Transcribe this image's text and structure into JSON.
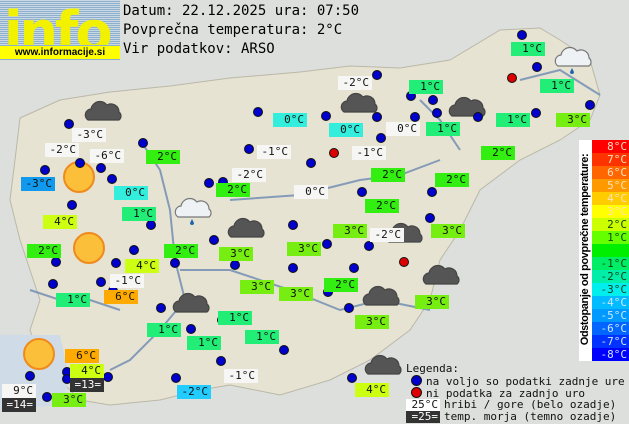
{
  "logo": {
    "word": "info",
    "url": "www.informacije.si"
  },
  "header": {
    "date_line": "Datum: 22.12.2025 ura: 07:50",
    "avg_line": "Povprečna temperatura: 2°C",
    "source_line": "Vir podatkov: ARSO"
  },
  "colors": {
    "white": "#f6f6f4",
    "cyan": "#33eedd",
    "g1": "#22ee77",
    "g2": "#33ee11",
    "g3": "#77ee11",
    "y4": "#ccff11",
    "o6": "#ffaa00",
    "b2": "#22ccff",
    "b3": "#1199ee",
    "sea": "#333333",
    "station_ok": "#0000cc",
    "station_missing": "#dd0000"
  },
  "stations": [
    {
      "t": "-2°C",
      "c": "white"
    },
    {
      "t": "0°C",
      "c": "cyan"
    },
    {
      "t": "0°C",
      "c": "cyan"
    },
    {
      "t": "0°C",
      "c": "white"
    },
    {
      "t": "1°C",
      "c": "g1"
    },
    {
      "t": "1°C",
      "c": "g1"
    },
    {
      "t": "1°C",
      "c": "g1"
    },
    {
      "t": "1°C",
      "c": "g1"
    },
    {
      "t": "1°C",
      "c": "g1"
    },
    {
      "t": "3°C",
      "c": "g3"
    },
    {
      "t": "2°C",
      "c": "g2"
    },
    {
      "t": "-1°C",
      "c": "white"
    },
    {
      "t": "-3°C",
      "c": "white"
    },
    {
      "t": "-2°C",
      "c": "white"
    },
    {
      "t": "-6°C",
      "c": "white"
    },
    {
      "t": "-3°C",
      "c": "b3"
    },
    {
      "t": "2°C",
      "c": "g2"
    },
    {
      "t": "-1°C",
      "c": "white"
    },
    {
      "t": "-2°C",
      "c": "white"
    },
    {
      "t": "2°C",
      "c": "g2"
    },
    {
      "t": "0°C",
      "c": "cyan"
    },
    {
      "t": "0°C",
      "c": "white"
    },
    {
      "t": "2°C",
      "c": "g2"
    },
    {
      "t": "2°C",
      "c": "g2"
    },
    {
      "t": "2°C",
      "c": "g2"
    },
    {
      "t": "1°C",
      "c": "g1"
    },
    {
      "t": "4°C",
      "c": "y4"
    },
    {
      "t": "2°C",
      "c": "g2"
    },
    {
      "t": "2°C",
      "c": "g2"
    },
    {
      "t": "3°C",
      "c": "g3"
    },
    {
      "t": "3°C",
      "c": "g3"
    },
    {
      "t": "3°C",
      "c": "g3"
    },
    {
      "t": "-2°C",
      "c": "white"
    },
    {
      "t": "3°C",
      "c": "g3"
    },
    {
      "t": "4°C",
      "c": "y4"
    },
    {
      "t": "-1°C",
      "c": "white"
    },
    {
      "t": "3°C",
      "c": "g3"
    },
    {
      "t": "3°C",
      "c": "g3"
    },
    {
      "t": "2°C",
      "c": "g2"
    },
    {
      "t": "3°C",
      "c": "g3"
    },
    {
      "t": "1°C",
      "c": "g1"
    },
    {
      "t": "6°C",
      "c": "o6"
    },
    {
      "t": "1°C",
      "c": "g1"
    },
    {
      "t": "1°C",
      "c": "g1"
    },
    {
      "t": "1°C",
      "c": "g1"
    },
    {
      "t": "1°C",
      "c": "g1"
    },
    {
      "t": "3°C",
      "c": "g3"
    },
    {
      "t": "6°C",
      "c": "o6"
    },
    {
      "t": "4°C",
      "c": "y4"
    },
    {
      "t": "=13=",
      "c": "sea"
    },
    {
      "t": "9°C",
      "c": "white"
    },
    {
      "t": "=14=",
      "c": "sea"
    },
    {
      "t": "3°C",
      "c": "g3"
    },
    {
      "t": "-2°C",
      "c": "b2"
    },
    {
      "t": "-1°C",
      "c": "white"
    },
    {
      "t": "4°C",
      "c": "y4"
    }
  ],
  "weather_icons": [
    "cloud-icon",
    "sun-icon",
    "rain-cloud-icon"
  ],
  "scale": {
    "title": "Odstopanje od povprečne temperature:",
    "steps": [
      {
        "t": "8°C",
        "bg": "#ff0000"
      },
      {
        "t": "7°C",
        "bg": "#ff3300"
      },
      {
        "t": "6°C",
        "bg": "#ff6600"
      },
      {
        "t": "5°C",
        "bg": "#ff9900"
      },
      {
        "t": "4°C",
        "bg": "#ffcc00"
      },
      {
        "t": "3°C",
        "bg": "#ffff00"
      },
      {
        "t": "2°C",
        "bg": "#ccff00"
      },
      {
        "t": "1°C",
        "bg": "#66ff00"
      },
      {
        "t": "",
        "bg": "#00ee00"
      },
      {
        "t": "-1°C",
        "bg": "#00ee66"
      },
      {
        "t": "-2°C",
        "bg": "#00eeaa"
      },
      {
        "t": "-3°C",
        "bg": "#00eeee"
      },
      {
        "t": "-4°C",
        "bg": "#00bbff"
      },
      {
        "t": "-5°C",
        "bg": "#0099ff"
      },
      {
        "t": "-6°C",
        "bg": "#0066ff"
      },
      {
        "t": "-7°C",
        "bg": "#0033ff"
      },
      {
        "t": "-8°C",
        "bg": "#0000ff"
      }
    ]
  },
  "legend": {
    "title": "Legenda:",
    "available": "na voljo so podatki zadnje ure",
    "missing": "ni podatka za zadnjo uro",
    "mountain_sample": "25°C",
    "mountain_text": "hribi / gore (belo ozadje)",
    "sea_sample": "=25=",
    "sea_text": "temp. morja (temno ozadje)"
  }
}
